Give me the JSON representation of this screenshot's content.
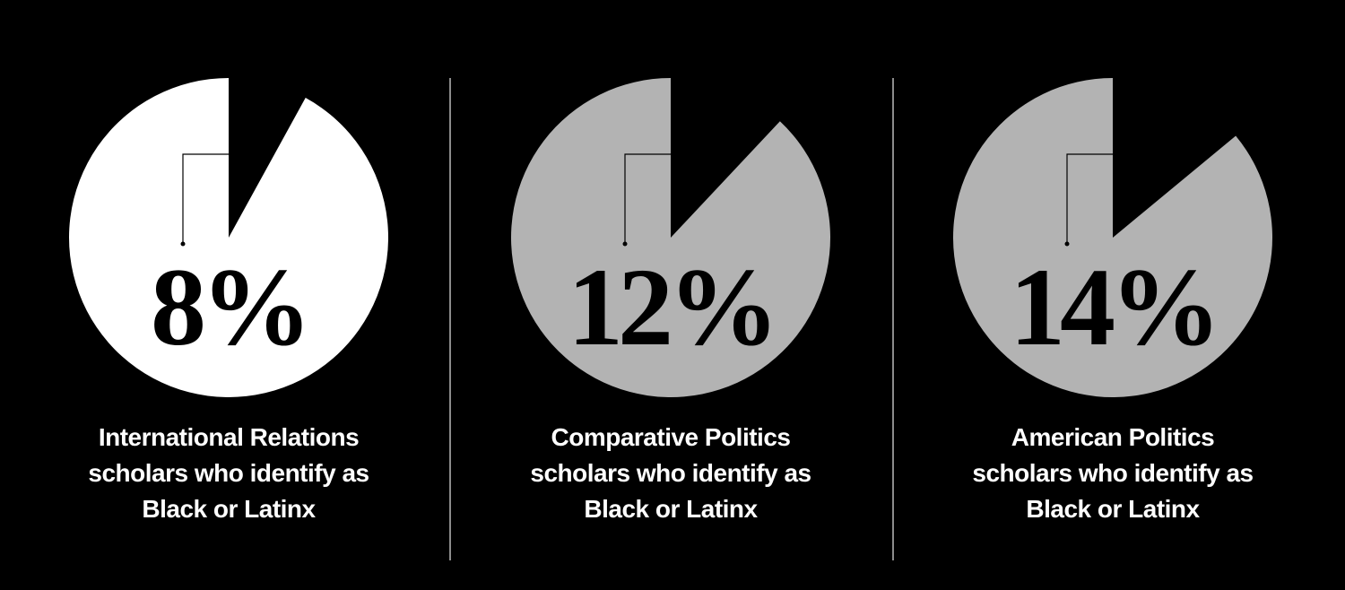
{
  "chart_data": [
    {
      "type": "pie",
      "values": [
        8
      ],
      "value_labels": [
        "8%"
      ],
      "color": "#ffffff",
      "label": [
        "International Relations",
        "scholars who identify as",
        "Black or Latinx"
      ]
    },
    {
      "type": "pie",
      "values": [
        12
      ],
      "value_labels": [
        "12%"
      ],
      "color": "#b3b3b3",
      "label": [
        "Comparative Politics",
        "scholars who identify as",
        "Black or Latinx"
      ]
    },
    {
      "type": "pie",
      "values": [
        14
      ],
      "value_labels": [
        "14%"
      ],
      "color": "#b3b3b3",
      "label": [
        "American Politics",
        "scholars who identify as",
        "Black or Latinx"
      ]
    }
  ]
}
